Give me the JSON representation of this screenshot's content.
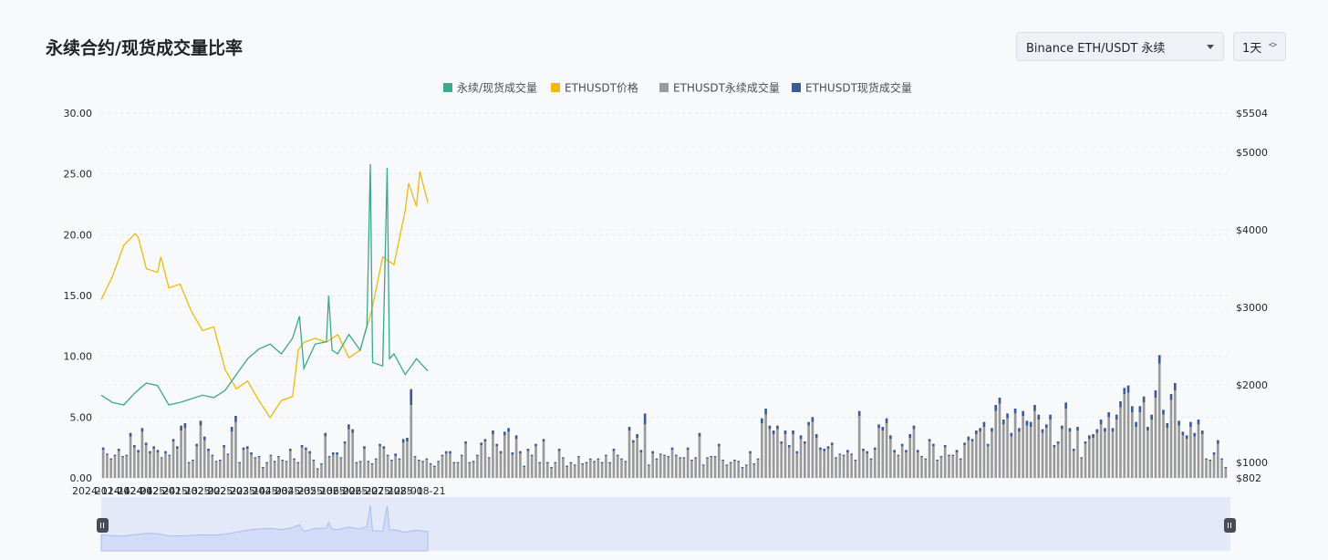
{
  "header": {
    "title": "永续合约/现货成交量比率",
    "market_select": "Binance ETH/USDT 永续",
    "interval_select": "1天"
  },
  "colors": {
    "ratio": "#3aa88c",
    "price": "#f0b90b",
    "perp_volume": "#9a9a9a",
    "spot_volume": "#3c5a9a",
    "grid": "#e6e8ea",
    "zoom_fill": "#e3e9f8",
    "zoom_line": "#a9bdf0"
  },
  "chart_data": {
    "type": "line",
    "legend_position": "top",
    "grid": true,
    "x_ticks": [
      "2024-11-14",
      "2024-12-04",
      "2024-12-24",
      "2025-01-13",
      "2025-02-02",
      "2025-02-22",
      "2025-03-14",
      "2025-04-03",
      "2025-04-23",
      "2025-05-13",
      "2025-06-02",
      "2025-06-22",
      "2025-07-12",
      "2025-08-01",
      "2025-08-21"
    ],
    "y_left": {
      "min": 0,
      "max": 30,
      "ticks": [
        "0.00",
        "5.00",
        "10.00",
        "15.00",
        "20.00",
        "25.00",
        "30.00"
      ]
    },
    "y_right": {
      "min": 802,
      "max": 5504,
      "ticks": [
        {
          "value": 802,
          "label": "$802"
        },
        {
          "value": 1000,
          "label": "$1000"
        },
        {
          "value": 2000,
          "label": "$2000"
        },
        {
          "value": 3000,
          "label": "$3000"
        },
        {
          "value": 4000,
          "label": "$4000"
        },
        {
          "value": 5000,
          "label": "$5000"
        },
        {
          "value": 5504,
          "label": "$5504"
        }
      ]
    },
    "series": [
      {
        "name": "永续/现货成交量",
        "axis": "left",
        "kind": "line",
        "points": [
          [
            "2024-11-14",
            6.8
          ],
          [
            "2024-11-24",
            6.2
          ],
          [
            "2024-12-04",
            6.0
          ],
          [
            "2024-12-14",
            7.0
          ],
          [
            "2024-12-24",
            7.8
          ],
          [
            "2025-01-03",
            7.6
          ],
          [
            "2025-01-13",
            6.0
          ],
          [
            "2025-01-23",
            6.2
          ],
          [
            "2025-02-02",
            6.5
          ],
          [
            "2025-02-12",
            6.8
          ],
          [
            "2025-02-22",
            6.6
          ],
          [
            "2025-03-04",
            7.2
          ],
          [
            "2025-03-14",
            8.5
          ],
          [
            "2025-03-24",
            9.8
          ],
          [
            "2025-04-03",
            10.6
          ],
          [
            "2025-04-13",
            11.0
          ],
          [
            "2025-04-23",
            10.2
          ],
          [
            "2025-05-03",
            11.5
          ],
          [
            "2025-05-09",
            13.3
          ],
          [
            "2025-05-13",
            9.0
          ],
          [
            "2025-05-23",
            11.0
          ],
          [
            "2025-06-02",
            11.2
          ],
          [
            "2025-06-04",
            15.0
          ],
          [
            "2025-06-07",
            10.5
          ],
          [
            "2025-06-12",
            10.2
          ],
          [
            "2025-06-22",
            11.8
          ],
          [
            "2025-07-02",
            10.5
          ],
          [
            "2025-07-08",
            12.5
          ],
          [
            "2025-07-11",
            25.8
          ],
          [
            "2025-07-13",
            9.5
          ],
          [
            "2025-07-22",
            9.2
          ],
          [
            "2025-07-26",
            25.5
          ],
          [
            "2025-07-28",
            9.8
          ],
          [
            "2025-08-01",
            10.2
          ],
          [
            "2025-08-11",
            8.5
          ],
          [
            "2025-08-21",
            9.8
          ],
          [
            "2025-08-31",
            8.8
          ]
        ]
      },
      {
        "name": "ETHUSDT价格",
        "axis": "right",
        "kind": "line",
        "points": [
          [
            "2024-11-14",
            3100
          ],
          [
            "2024-11-24",
            3400
          ],
          [
            "2024-12-04",
            3800
          ],
          [
            "2024-12-14",
            3950
          ],
          [
            "2024-12-17",
            3900
          ],
          [
            "2024-12-24",
            3500
          ],
          [
            "2025-01-03",
            3450
          ],
          [
            "2025-01-06",
            3650
          ],
          [
            "2025-01-13",
            3250
          ],
          [
            "2025-01-23",
            3300
          ],
          [
            "2025-02-02",
            2950
          ],
          [
            "2025-02-12",
            2700
          ],
          [
            "2025-02-22",
            2750
          ],
          [
            "2025-03-04",
            2200
          ],
          [
            "2025-03-14",
            1950
          ],
          [
            "2025-03-24",
            2050
          ],
          [
            "2025-04-03",
            1800
          ],
          [
            "2025-04-13",
            1580
          ],
          [
            "2025-04-23",
            1800
          ],
          [
            "2025-05-03",
            1850
          ],
          [
            "2025-05-08",
            2450
          ],
          [
            "2025-05-13",
            2550
          ],
          [
            "2025-05-23",
            2600
          ],
          [
            "2025-06-02",
            2550
          ],
          [
            "2025-06-12",
            2650
          ],
          [
            "2025-06-22",
            2350
          ],
          [
            "2025-07-02",
            2450
          ],
          [
            "2025-07-12",
            2950
          ],
          [
            "2025-07-22",
            3650
          ],
          [
            "2025-08-01",
            3550
          ],
          [
            "2025-08-11",
            4250
          ],
          [
            "2025-08-14",
            4600
          ],
          [
            "2025-08-21",
            4300
          ],
          [
            "2025-08-24",
            4750
          ],
          [
            "2025-08-31",
            4350
          ]
        ]
      },
      {
        "name": "ETHUSDT永续成交量",
        "axis": "left",
        "kind": "bar",
        "values": [
          2.3,
          1.9,
          1.5,
          1.8,
          2.2,
          1.7,
          1.8,
          3.4,
          2.5,
          2.1,
          3.8,
          2.7,
          2.0,
          2.4,
          2.1,
          1.6,
          2.0,
          1.8,
          3.0,
          2.4,
          3.9,
          4.1,
          1.2,
          1.4,
          2.6,
          4.3,
          3.1,
          2.2,
          1.8,
          1.3,
          1.4,
          2.5,
          1.9,
          3.8,
          4.6,
          1.2,
          2.3,
          2.4,
          1.9,
          1.6,
          1.7,
          0.8,
          1.2,
          1.8,
          1.3,
          1.7,
          1.4,
          1.3,
          2.2,
          1.5,
          1.2,
          2.5,
          2.3,
          2.0,
          1.4,
          0.7,
          1.1,
          3.4,
          1.7,
          1.9,
          1.9,
          1.6,
          2.8,
          4.0,
          3.7,
          1.2,
          1.3,
          2.4,
          1.3,
          1.1,
          1.5,
          2.6,
          2.4,
          1.8,
          1.4,
          1.8,
          1.5,
          2.9,
          3.0,
          6.0,
          1.7,
          1.4,
          1.3,
          1.5,
          1.1,
          0.9,
          1.3,
          1.8,
          2.0,
          2.0,
          1.2,
          1.2,
          1.8,
          2.8,
          1.2,
          1.3,
          1.8,
          2.7,
          3.0,
          1.6,
          3.6,
          2.6,
          2.0,
          3.5,
          3.8,
          1.9,
          3.2,
          2.0,
          0.9,
          2.2,
          1.8,
          2.6,
          1.2,
          3.0,
          1.2,
          0.8,
          1.2,
          2.2,
          1.6,
          0.9,
          1.2,
          1.0,
          1.7,
          1.1,
          1.2,
          1.5,
          1.3,
          1.5,
          1.2,
          1.8,
          1.2,
          2.2,
          1.8,
          1.5,
          1.3,
          3.9,
          2.9,
          3.3,
          2.1,
          4.4,
          1.0,
          2.0,
          1.5,
          1.9,
          1.8,
          1.7,
          2.3,
          1.8,
          1.6,
          1.6,
          2.3,
          1.4,
          1.6,
          3.4,
          1.0,
          1.6,
          1.7,
          1.7,
          2.6,
          1.4,
          1.0,
          1.2,
          1.4,
          1.3,
          0.8,
          1.0,
          2.0,
          1.1,
          1.5,
          4.5,
          5.2,
          4.0,
          3.6,
          4.0,
          2.8,
          3.6,
          2.5,
          3.6,
          2.0,
          3.2,
          2.8,
          4.3,
          4.6,
          3.3,
          2.3,
          2.2,
          2.4,
          2.7,
          1.6,
          1.9,
          1.8,
          2.1,
          1.9,
          1.4,
          5.1,
          2.2,
          2.0,
          1.5,
          2.3,
          4.1,
          3.9,
          4.5,
          3.2,
          2.1,
          1.8,
          2.6,
          2.1,
          3.3,
          4.0,
          2.1,
          1.7,
          1.5,
          3.0,
          2.6,
          1.4,
          1.7,
          2.5,
          1.8,
          1.8,
          2.1,
          1.5,
          2.7,
          3.1,
          3.0,
          3.6,
          3.8,
          4.2,
          2.6,
          3.8,
          5.5,
          6.1,
          4.4,
          4.9,
          3.4,
          5.3,
          3.8,
          5.1,
          4.3,
          4.2,
          5.5,
          4.8,
          3.7,
          4.1,
          4.8,
          2.5,
          2.8,
          4.0,
          5.7,
          3.8,
          2.2,
          3.9,
          1.6,
          2.8,
          3.2,
          3.3,
          3.7,
          4.4,
          3.8,
          5.0,
          3.8,
          4.8,
          5.8,
          6.9,
          7.0,
          5.4,
          4.2,
          5.4,
          6.2,
          3.9,
          4.8,
          6.6,
          9.4,
          5.2,
          4.1,
          6.4,
          7.2,
          4.3,
          3.5,
          3.2,
          4.2,
          3.4,
          4.4,
          3.6,
          1.5,
          1.4,
          1.9,
          2.8,
          1.5,
          0.8
        ]
      },
      {
        "name": "ETHUSDT现货成交量",
        "axis": "left",
        "kind": "bar",
        "values": [
          0.2,
          0.1,
          0.1,
          0.1,
          0.2,
          0.1,
          0.1,
          0.3,
          0.2,
          0.2,
          0.3,
          0.2,
          0.2,
          0.2,
          0.2,
          0.1,
          0.2,
          0.1,
          0.2,
          0.2,
          0.4,
          0.4,
          0.1,
          0.1,
          0.2,
          0.4,
          0.3,
          0.2,
          0.1,
          0.1,
          0.1,
          0.2,
          0.1,
          0.4,
          0.5,
          0.1,
          0.2,
          0.2,
          0.2,
          0.1,
          0.1,
          0.1,
          0.1,
          0.1,
          0.1,
          0.1,
          0.1,
          0.1,
          0.2,
          0.1,
          0.1,
          0.2,
          0.2,
          0.2,
          0.1,
          0.1,
          0.1,
          0.3,
          0.1,
          0.2,
          0.2,
          0.1,
          0.2,
          0.4,
          0.3,
          0.1,
          0.1,
          0.2,
          0.1,
          0.1,
          0.1,
          0.2,
          0.2,
          0.1,
          0.1,
          0.2,
          0.1,
          0.3,
          0.3,
          1.3,
          0.1,
          0.1,
          0.1,
          0.1,
          0.1,
          0.1,
          0.1,
          0.1,
          0.2,
          0.2,
          0.1,
          0.1,
          0.1,
          0.2,
          0.1,
          0.1,
          0.1,
          0.2,
          0.2,
          0.1,
          0.3,
          0.2,
          0.2,
          0.3,
          0.3,
          0.2,
          0.3,
          0.2,
          0.1,
          0.2,
          0.1,
          0.2,
          0.1,
          0.2,
          0.1,
          0.1,
          0.1,
          0.2,
          0.1,
          0.1,
          0.1,
          0.1,
          0.1,
          0.1,
          0.1,
          0.1,
          0.1,
          0.1,
          0.1,
          0.1,
          0.1,
          0.2,
          0.1,
          0.1,
          0.1,
          0.3,
          0.2,
          0.3,
          0.2,
          0.9,
          0.1,
          0.2,
          0.1,
          0.1,
          0.1,
          0.1,
          0.2,
          0.1,
          0.1,
          0.1,
          0.2,
          0.1,
          0.1,
          0.3,
          0.1,
          0.1,
          0.1,
          0.1,
          0.2,
          0.1,
          0.1,
          0.1,
          0.1,
          0.1,
          0.1,
          0.1,
          0.2,
          0.1,
          0.1,
          0.4,
          0.5,
          0.3,
          0.3,
          0.3,
          0.2,
          0.3,
          0.2,
          0.3,
          0.2,
          0.3,
          0.2,
          0.3,
          0.4,
          0.3,
          0.2,
          0.2,
          0.2,
          0.2,
          0.1,
          0.1,
          0.1,
          0.2,
          0.1,
          0.1,
          0.4,
          0.2,
          0.2,
          0.1,
          0.2,
          0.3,
          0.3,
          0.4,
          0.3,
          0.2,
          0.1,
          0.2,
          0.2,
          0.3,
          0.3,
          0.2,
          0.1,
          0.1,
          0.2,
          0.2,
          0.1,
          0.1,
          0.2,
          0.1,
          0.1,
          0.2,
          0.1,
          0.2,
          0.3,
          0.2,
          0.3,
          0.3,
          0.4,
          0.2,
          0.3,
          0.5,
          0.5,
          0.4,
          0.4,
          0.3,
          0.4,
          0.3,
          0.4,
          0.4,
          0.4,
          0.5,
          0.4,
          0.3,
          0.3,
          0.4,
          0.2,
          0.2,
          0.3,
          0.5,
          0.3,
          0.2,
          0.3,
          0.1,
          0.2,
          0.3,
          0.3,
          0.3,
          0.4,
          0.3,
          0.4,
          0.3,
          0.4,
          0.5,
          0.5,
          0.6,
          0.5,
          0.4,
          0.5,
          0.5,
          0.3,
          0.4,
          0.6,
          0.7,
          0.4,
          0.4,
          0.5,
          0.6,
          0.4,
          0.3,
          0.3,
          0.4,
          0.3,
          0.4,
          0.3,
          0.1,
          0.1,
          0.2,
          0.3,
          0.1,
          0.1
        ]
      }
    ]
  }
}
